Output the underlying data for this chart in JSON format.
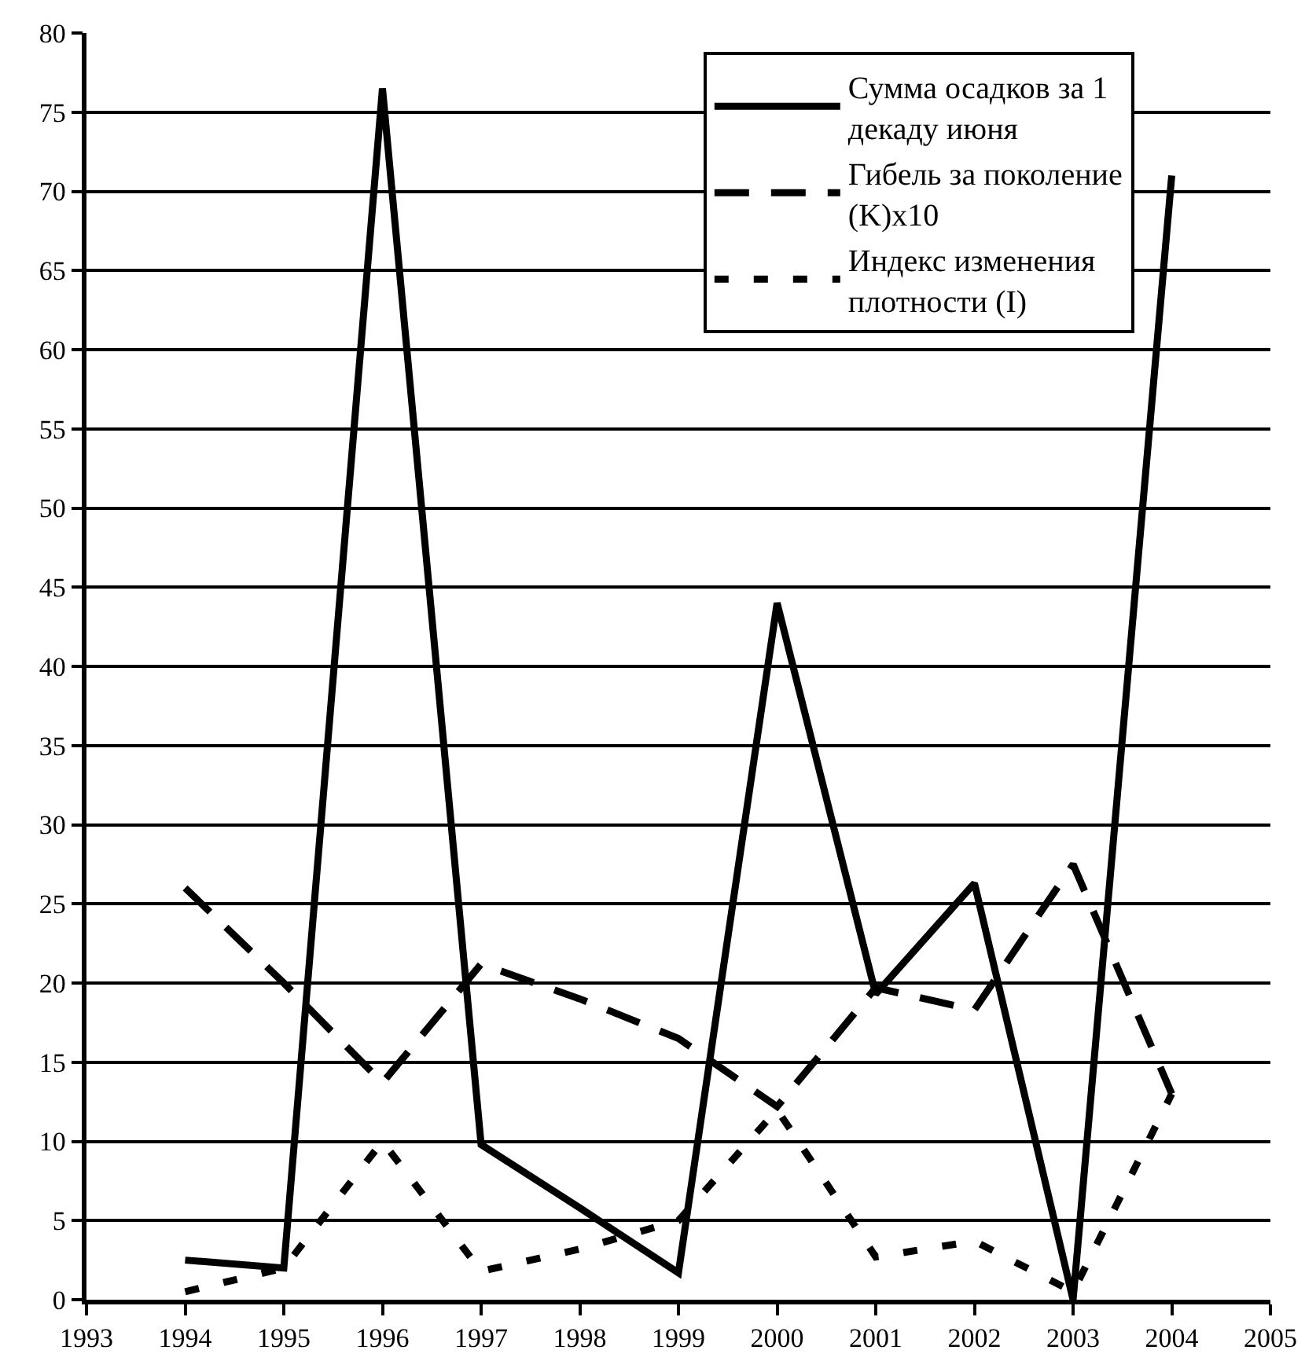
{
  "chart_data": {
    "type": "line",
    "x": [
      1994,
      1995,
      1996,
      1997,
      1998,
      1999,
      2000,
      2001,
      2002,
      2003,
      2004
    ],
    "series": [
      {
        "name": "Сумма осадков за 1 декаду июня",
        "color": "#000000",
        "line_style": "solid",
        "values": [
          2.5,
          2,
          76.5,
          9.8,
          5.8,
          1.7,
          44,
          19.3,
          26.3,
          0,
          71
        ]
      },
      {
        "name": "Гибель за поколение (K)x10",
        "color": "#000000",
        "line_style": "dashed",
        "values": [
          26,
          20,
          13.7,
          21.2,
          19,
          16.5,
          12.2,
          19.7,
          18.3,
          27.5,
          13
        ]
      },
      {
        "name": "Индекс изменения плотности (I)",
        "color": "#000000",
        "line_style": "dotted",
        "values": [
          0.5,
          2,
          10,
          1.8,
          3.2,
          5,
          12,
          2.7,
          3.7,
          0.5,
          13
        ]
      }
    ],
    "xlim": [
      1993,
      2005
    ],
    "xticks": [
      1993,
      1994,
      1995,
      1996,
      1997,
      1998,
      1999,
      2000,
      2001,
      2002,
      2003,
      2004,
      2005
    ],
    "ylim": [
      0,
      80
    ],
    "yticks": [
      0,
      5,
      10,
      15,
      20,
      25,
      30,
      35,
      40,
      45,
      50,
      55,
      60,
      65,
      70,
      75,
      80
    ],
    "grid": "y",
    "legend": "top right",
    "marker": "none"
  }
}
